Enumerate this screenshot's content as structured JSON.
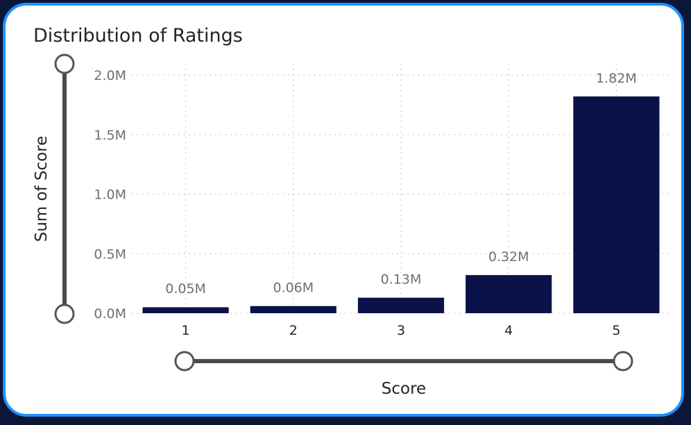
{
  "chart_data": {
    "type": "bar",
    "title": "Distribution of Ratings",
    "xlabel": "Score",
    "ylabel": "Sum of Score",
    "categories": [
      "1",
      "2",
      "3",
      "4",
      "5"
    ],
    "values": [
      0.05,
      0.06,
      0.13,
      0.32,
      1.82
    ],
    "data_labels": [
      "0.05M",
      "0.06M",
      "0.13M",
      "0.32M",
      "1.82M"
    ],
    "y_ticks": [
      0,
      0.5,
      1.0,
      1.5,
      2.0
    ],
    "y_tick_labels": [
      "0.0M",
      "0.5M",
      "1.0M",
      "1.5M",
      "2.0M"
    ],
    "ylim": [
      0,
      2.0
    ],
    "unit": "M",
    "grid": true,
    "bar_color": "#0b1249",
    "frame_color": "#1e90ff"
  }
}
